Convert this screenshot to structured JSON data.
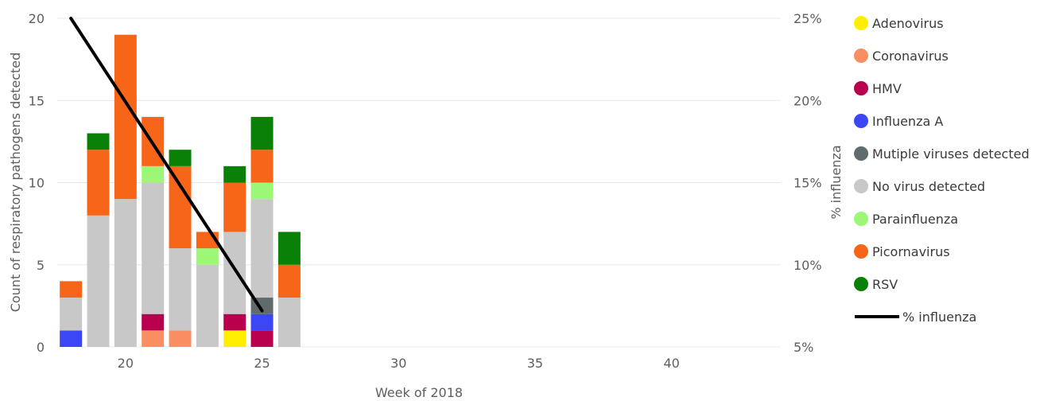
{
  "chart_data": {
    "type": "bar",
    "stacked": true,
    "xlabel": "Week of 2018",
    "ylabel": "Count of respiratory pathogens detected",
    "y2label": "% influenza",
    "xlim": [
      17.5,
      44
    ],
    "xticks": [
      20,
      25,
      30,
      35,
      40
    ],
    "ylim": [
      0,
      20
    ],
    "yticks": [
      0,
      5,
      10,
      15,
      20
    ],
    "y2lim": [
      5,
      25
    ],
    "y2ticks": [
      "5%",
      "10%",
      "15%",
      "20%",
      "25%"
    ],
    "y2tick_values": [
      5,
      10,
      15,
      20,
      25
    ],
    "grid": true,
    "legend_position": "right",
    "weeks": [
      18,
      19,
      20,
      21,
      22,
      23,
      24,
      25,
      26
    ],
    "series": [
      {
        "name": "Adenovirus",
        "color": "#ffee00",
        "values": [
          0,
          0,
          0,
          0,
          0,
          0,
          1,
          0,
          0
        ]
      },
      {
        "name": "Coronavirus",
        "color": "#f98e62",
        "values": [
          0,
          0,
          0,
          1,
          1,
          0,
          0,
          0,
          0
        ]
      },
      {
        "name": "HMV",
        "color": "#b8004f",
        "values": [
          0,
          0,
          0,
          1,
          0,
          0,
          1,
          1,
          0
        ]
      },
      {
        "name": "Influenza A",
        "color": "#3b46f5",
        "values": [
          1,
          0,
          0,
          0,
          0,
          0,
          0,
          1,
          0
        ]
      },
      {
        "name": "Mutiple viruses detected",
        "color": "#5f6b6d",
        "values": [
          0,
          0,
          0,
          0,
          0,
          0,
          0,
          1,
          0
        ]
      },
      {
        "name": "No virus detected",
        "color": "#c8c8c8",
        "values": [
          2,
          8,
          9,
          8,
          5,
          5,
          5,
          6,
          3
        ]
      },
      {
        "name": "Parainfluenza",
        "color": "#9bf775",
        "values": [
          0,
          0,
          0,
          1,
          0,
          1,
          0,
          1,
          0
        ]
      },
      {
        "name": "Picornavirus",
        "color": "#f76518",
        "values": [
          1,
          4,
          10,
          3,
          5,
          1,
          3,
          2,
          2
        ]
      },
      {
        "name": "RSV",
        "color": "#098006",
        "values": [
          0,
          1,
          0,
          0,
          1,
          0,
          1,
          2,
          2
        ]
      }
    ],
    "line": {
      "name": "% influenza",
      "color": "#000000",
      "x": [
        18,
        25
      ],
      "y": [
        25,
        7.2
      ]
    }
  }
}
